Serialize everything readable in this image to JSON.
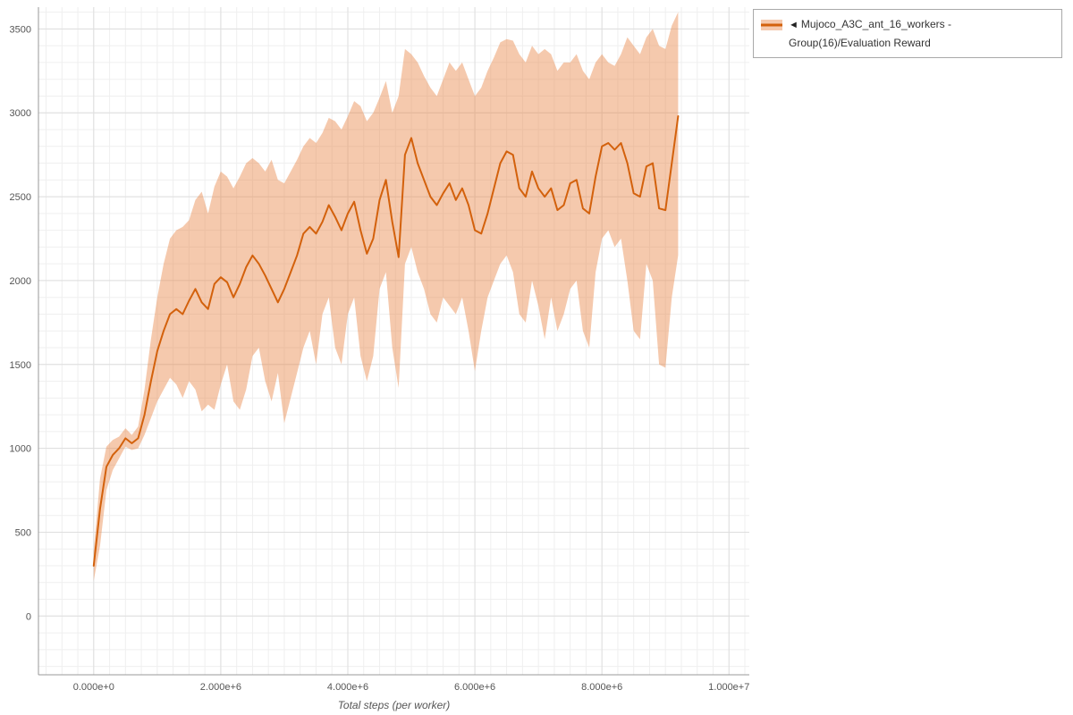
{
  "legend": {
    "collapse_icon": "◄",
    "label": "Mujoco_A3C_ant_16_workers - Group(16)/Evaluation Reward"
  },
  "axes": {
    "x_title": "Total steps (per worker)",
    "x_tick_labels": [
      "0.000e+0",
      "2.000e+6",
      "4.000e+6",
      "6.000e+6",
      "8.000e+6",
      "1.000e+7"
    ],
    "x_tick_values": [
      0,
      2000000,
      4000000,
      6000000,
      8000000,
      10000000
    ],
    "y_tick_labels": [
      "0",
      "500",
      "1000",
      "1500",
      "2000",
      "2500",
      "3000",
      "3500"
    ],
    "y_tick_values": [
      0,
      500,
      1000,
      1500,
      2000,
      2500,
      3000,
      3500
    ]
  },
  "colors": {
    "line": "#d3610c",
    "band": "#e8874a",
    "band_opacity": 0.45,
    "grid_minor": "#efefef",
    "grid_major": "#dedede",
    "axis": "#999999",
    "tick_text": "#555555",
    "title_text": "#555555"
  },
  "chart_data": {
    "type": "line",
    "title": "Mujoco_A3C_ant_16_workers - Group(16)/Evaluation Reward",
    "xlabel": "Total steps (per worker)",
    "ylabel": "",
    "grid": true,
    "legend_position": "top-right",
    "xlim": [
      -870000,
      10320000
    ],
    "ylim": [
      -350,
      3630
    ],
    "x_unit": 1000000,
    "x_millions": [
      0,
      0.1,
      0.2,
      0.3,
      0.4,
      0.5,
      0.6,
      0.7,
      0.8,
      0.9,
      1,
      1.1,
      1.2,
      1.3,
      1.4,
      1.5,
      1.6,
      1.7,
      1.8,
      1.9,
      2,
      2.1,
      2.2,
      2.3,
      2.4,
      2.5,
      2.6,
      2.7,
      2.8,
      2.9,
      3,
      3.1,
      3.2,
      3.3,
      3.4,
      3.5,
      3.6,
      3.7,
      3.8,
      3.9,
      4,
      4.1,
      4.2,
      4.3,
      4.4,
      4.5,
      4.6,
      4.7,
      4.8,
      4.9,
      5,
      5.1,
      5.2,
      5.3,
      5.4,
      5.5,
      5.6,
      5.7,
      5.8,
      5.9,
      6,
      6.1,
      6.2,
      6.3,
      6.4,
      6.5,
      6.6,
      6.7,
      6.8,
      6.9,
      7,
      7.1,
      7.2,
      7.3,
      7.4,
      7.5,
      7.6,
      7.7,
      7.8,
      7.9,
      8,
      8.1,
      8.2,
      8.3,
      8.4,
      8.5,
      8.6,
      8.7,
      8.8,
      8.9,
      9,
      9.1,
      9.2
    ],
    "series": [
      {
        "name": "mean",
        "values": [
          300,
          640,
          890,
          960,
          1000,
          1060,
          1030,
          1060,
          1200,
          1400,
          1580,
          1700,
          1800,
          1830,
          1800,
          1880,
          1950,
          1870,
          1830,
          1980,
          2020,
          1990,
          1900,
          1980,
          2080,
          2150,
          2100,
          2030,
          1950,
          1870,
          1950,
          2050,
          2150,
          2280,
          2320,
          2280,
          2350,
          2450,
          2380,
          2300,
          2400,
          2470,
          2300,
          2160,
          2250,
          2480,
          2600,
          2350,
          2140,
          2750,
          2850,
          2700,
          2600,
          2500,
          2450,
          2520,
          2580,
          2480,
          2550,
          2450,
          2300,
          2280,
          2400,
          2550,
          2700,
          2770,
          2750,
          2550,
          2500,
          2650,
          2550,
          2500,
          2550,
          2420,
          2450,
          2580,
          2600,
          2430,
          2400,
          2620,
          2800,
          2820,
          2780,
          2820,
          2700,
          2520,
          2500,
          2680,
          2700,
          2430,
          2420,
          2700,
          2980
        ]
      },
      {
        "name": "band_lower",
        "values": [
          210,
          420,
          750,
          870,
          940,
          1010,
          990,
          1000,
          1080,
          1180,
          1280,
          1350,
          1420,
          1380,
          1300,
          1400,
          1350,
          1220,
          1260,
          1230,
          1380,
          1500,
          1280,
          1230,
          1350,
          1550,
          1600,
          1400,
          1280,
          1450,
          1150,
          1300,
          1450,
          1600,
          1700,
          1500,
          1800,
          1900,
          1600,
          1500,
          1800,
          1900,
          1550,
          1400,
          1550,
          1950,
          2050,
          1600,
          1360,
          2100,
          2200,
          2050,
          1950,
          1800,
          1750,
          1900,
          1850,
          1800,
          1900,
          1700,
          1460,
          1700,
          1900,
          2000,
          2100,
          2150,
          2050,
          1800,
          1750,
          2000,
          1850,
          1650,
          1900,
          1700,
          1800,
          1950,
          2000,
          1700,
          1600,
          2050,
          2250,
          2300,
          2200,
          2250,
          2000,
          1700,
          1650,
          2100,
          2000,
          1500,
          1480,
          1900,
          2150
        ]
      },
      {
        "name": "band_upper",
        "values": [
          390,
          820,
          1010,
          1050,
          1070,
          1120,
          1080,
          1130,
          1350,
          1650,
          1900,
          2100,
          2250,
          2300,
          2320,
          2360,
          2480,
          2530,
          2400,
          2560,
          2650,
          2620,
          2550,
          2620,
          2700,
          2730,
          2700,
          2650,
          2720,
          2600,
          2580,
          2650,
          2720,
          2800,
          2850,
          2820,
          2880,
          2970,
          2950,
          2900,
          2980,
          3070,
          3040,
          2950,
          3000,
          3090,
          3190,
          3000,
          3100,
          3380,
          3350,
          3300,
          3220,
          3150,
          3100,
          3200,
          3300,
          3250,
          3300,
          3200,
          3100,
          3150,
          3250,
          3330,
          3420,
          3440,
          3430,
          3350,
          3300,
          3400,
          3350,
          3380,
          3350,
          3250,
          3300,
          3300,
          3350,
          3250,
          3200,
          3300,
          3350,
          3300,
          3280,
          3350,
          3450,
          3400,
          3350,
          3450,
          3500,
          3400,
          3380,
          3520,
          3600
        ]
      }
    ]
  }
}
